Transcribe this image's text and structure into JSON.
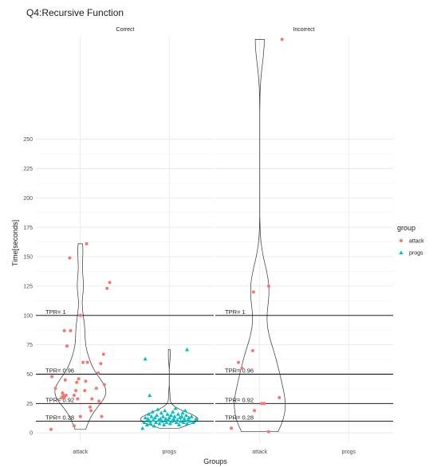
{
  "chart_data": {
    "type": "scatter",
    "title": "Q4:Recursive Function",
    "xlabel": "Groups",
    "ylabel": "Time[seconds]",
    "panels": [
      "Correct",
      "Incorrect"
    ],
    "categories": [
      "attack",
      "progs"
    ],
    "y_ticks": [
      0,
      25,
      50,
      75,
      100,
      125,
      150,
      175,
      200,
      225,
      250
    ],
    "ylim": [
      -8,
      338
    ],
    "grid": true,
    "legend": {
      "title": "group",
      "position": "right",
      "entries": [
        {
          "label": "attack",
          "color": "#F8766D",
          "shape": "circle"
        },
        {
          "label": "progs",
          "color": "#00BFC4",
          "shape": "triangle"
        }
      ]
    },
    "thresholds": [
      {
        "label": "TPR= 1",
        "value": 100
      },
      {
        "label": "TPR= 0.96",
        "value": 50
      },
      {
        "label": "TPR= 0.92",
        "value": 25
      },
      {
        "label": "TPR= 0.28",
        "value": 10
      }
    ],
    "series": [
      {
        "name": "attack",
        "panel": "Correct",
        "category": "attack",
        "x_offsets": [
          -0.33,
          -0.32,
          -0.28,
          -0.21,
          -0.2,
          -0.19,
          -0.18,
          -0.17,
          -0.16,
          -0.15,
          -0.12,
          -0.11,
          -0.07,
          -0.05,
          -0.04,
          -0.03,
          -0.02,
          0.0,
          0.0,
          0.03,
          0.06,
          0.07,
          0.08,
          0.11,
          0.12,
          0.13,
          0.18,
          0.2,
          0.21,
          0.23,
          0.24,
          0.26,
          0.27,
          0.3,
          0.33,
          -0.07,
          -0.18,
          0.05
        ],
        "y": [
          3,
          48,
          38,
          30,
          34,
          32,
          30,
          45,
          32,
          74,
          149,
          87,
          6,
          36,
          43,
          29,
          46,
          14,
          100,
          60,
          44,
          161,
          60,
          22,
          19,
          29,
          38,
          51,
          27,
          59,
          14,
          67,
          41,
          123,
          128,
          32,
          87,
          36
        ]
      },
      {
        "name": "attack",
        "panel": "Incorrect",
        "category": "attack",
        "x_offsets": [
          -0.32,
          -0.24,
          -0.2,
          -0.08,
          -0.07,
          -0.06,
          0.02,
          0.05,
          0.1,
          0.1,
          0.22,
          0.25
        ],
        "y": [
          4,
          60,
          55,
          70,
          120,
          19,
          25,
          25,
          1,
          125,
          30,
          335
        ]
      },
      {
        "name": "progs",
        "panel": "Correct",
        "category": "progs",
        "x_offsets": [
          -0.3,
          -0.28,
          -0.27,
          -0.25,
          -0.24,
          -0.23,
          -0.22,
          -0.21,
          -0.2,
          -0.19,
          -0.18,
          -0.17,
          -0.16,
          -0.15,
          -0.14,
          -0.13,
          -0.12,
          -0.11,
          -0.1,
          -0.09,
          -0.08,
          -0.07,
          -0.06,
          -0.05,
          -0.04,
          -0.03,
          -0.02,
          -0.01,
          0.0,
          0.01,
          0.02,
          0.03,
          0.04,
          0.05,
          0.06,
          0.07,
          0.08,
          0.09,
          0.1,
          0.11,
          0.12,
          0.13,
          0.14,
          0.15,
          0.16,
          0.17,
          0.18,
          0.19,
          0.2,
          0.21,
          0.22,
          0.23,
          0.25,
          0.27,
          0.3,
          -0.27,
          -0.22,
          0.2
        ],
        "y": [
          4,
          9,
          13,
          7,
          12,
          16,
          10,
          8,
          14,
          18,
          11,
          6,
          13,
          9,
          15,
          20,
          11,
          8,
          12,
          17,
          10,
          14,
          7,
          19,
          12,
          9,
          16,
          11,
          13,
          8,
          15,
          10,
          18,
          12,
          14,
          21,
          9,
          11,
          16,
          7,
          13,
          10,
          14,
          17,
          9,
          12,
          19,
          15,
          8,
          11,
          13,
          10,
          14,
          9,
          12,
          63,
          32,
          71
        ]
      }
    ]
  }
}
